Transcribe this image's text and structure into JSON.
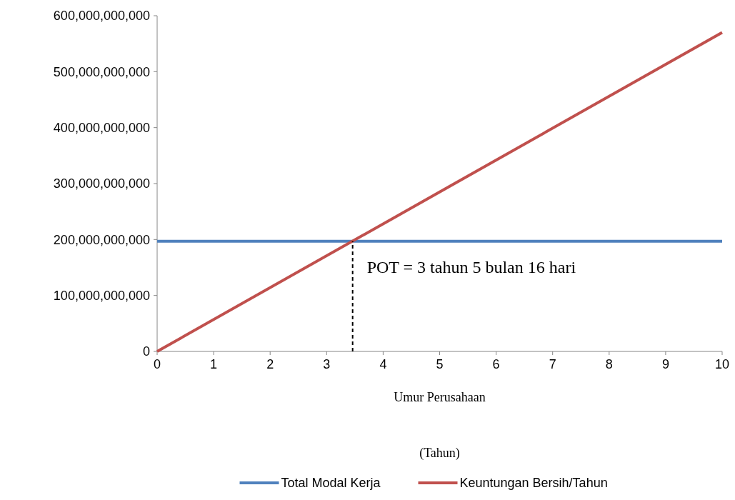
{
  "chart_data": {
    "type": "line",
    "xlabel": "Umur Perusahaan\n(Tahun)",
    "xlim": [
      0,
      10
    ],
    "xticks": [
      0,
      1,
      2,
      3,
      4,
      5,
      6,
      7,
      8,
      9,
      10
    ],
    "ylim": [
      0,
      600000000000
    ],
    "yticks": [
      {
        "value": 0,
        "label": "0"
      },
      {
        "value": 100000000000,
        "label": "100,000,000,000"
      },
      {
        "value": 200000000000,
        "label": "200,000,000,000"
      },
      {
        "value": 300000000000,
        "label": "300,000,000,000"
      },
      {
        "value": 400000000000,
        "label": "400,000,000,000"
      },
      {
        "value": 500000000000,
        "label": "500,000,000,000"
      },
      {
        "value": 600000000000,
        "label": "600,000,000,000"
      }
    ],
    "grid": false,
    "legend": "bottom",
    "series": [
      {
        "name": "Total Modal Kerja",
        "color": "#4f81bd",
        "x": [
          0,
          10
        ],
        "values": [
          197000000000,
          197000000000
        ]
      },
      {
        "name": "Keuntungan Bersih/Tahun",
        "color": "#c0504d",
        "x": [
          0,
          10
        ],
        "values": [
          0,
          570000000000
        ]
      },
      {
        "color": "#000000",
        "line_style": "dashed",
        "x": [
          3.46,
          3.46
        ],
        "values": [
          0,
          197000000000
        ]
      }
    ],
    "annotations": [
      {
        "text": "POT = 3 tahun 5 bulan 16 hari",
        "x": 3.46,
        "y": 140000000000
      }
    ]
  }
}
